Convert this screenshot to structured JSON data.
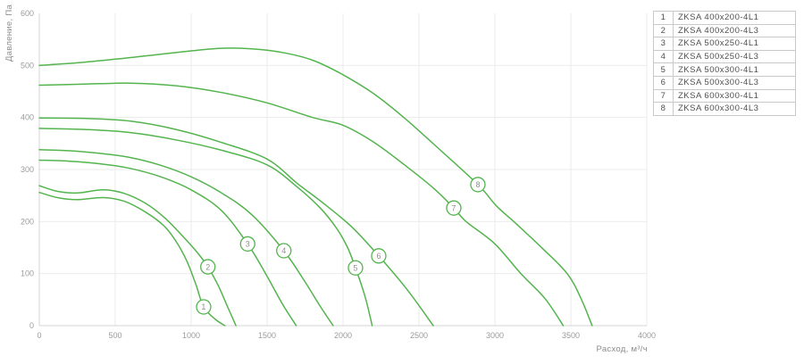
{
  "chart_data": {
    "type": "line",
    "title": "",
    "xlabel": "Расход, м³/ч",
    "ylabel": "Давление, Па",
    "xlim": [
      0,
      4000
    ],
    "ylim": [
      0,
      600
    ],
    "x_ticks": [
      0,
      500,
      1000,
      1500,
      2000,
      2500,
      3000,
      3500,
      4000
    ],
    "y_ticks": [
      0,
      100,
      200,
      300,
      400,
      500,
      600
    ],
    "grid": true,
    "legend_position": "top-right-outside",
    "style": {
      "curve_color": "#54b44e",
      "grid_color": "#ebebeb",
      "axis_color": "#d4d4d4",
      "tick_text_color": "#9b9b9b",
      "axis_title_color": "#8d8d8d",
      "marker_fill": "#ffffff",
      "marker_number_color": "#909090",
      "legend_border_color": "#c9c9c9",
      "legend_text_color": "#4f4f4f"
    },
    "series": [
      {
        "num": "1",
        "name": "ZKSA 400x200-4L1",
        "marker_at": {
          "flow": 1082,
          "pressure": 36
        },
        "points": [
          [
            0,
            256
          ],
          [
            120,
            246
          ],
          [
            250,
            242
          ],
          [
            420,
            246
          ],
          [
            560,
            239
          ],
          [
            700,
            218
          ],
          [
            820,
            192
          ],
          [
            900,
            162
          ],
          [
            970,
            125
          ],
          [
            1030,
            80
          ],
          [
            1082,
            36
          ],
          [
            1160,
            12
          ],
          [
            1222,
            0
          ]
        ]
      },
      {
        "num": "2",
        "name": "ZKSA 400x200-4L3",
        "marker_at": {
          "flow": 1110,
          "pressure": 113
        },
        "points": [
          [
            0,
            269
          ],
          [
            120,
            258
          ],
          [
            250,
            255
          ],
          [
            420,
            261
          ],
          [
            560,
            254
          ],
          [
            700,
            235
          ],
          [
            830,
            206
          ],
          [
            950,
            170
          ],
          [
            1050,
            137
          ],
          [
            1110,
            113
          ],
          [
            1180,
            76
          ],
          [
            1240,
            36
          ],
          [
            1295,
            0
          ]
        ]
      },
      {
        "num": "3",
        "name": "ZKSA 500x250-4L1",
        "marker_at": {
          "flow": 1372,
          "pressure": 157
        },
        "points": [
          [
            0,
            318
          ],
          [
            200,
            316
          ],
          [
            400,
            311
          ],
          [
            600,
            302
          ],
          [
            800,
            286
          ],
          [
            1000,
            261
          ],
          [
            1200,
            221
          ],
          [
            1372,
            157
          ],
          [
            1490,
            100
          ],
          [
            1600,
            42
          ],
          [
            1692,
            0
          ]
        ]
      },
      {
        "num": "4",
        "name": "ZKSA 500x250-4L3",
        "marker_at": {
          "flow": 1610,
          "pressure": 144
        },
        "points": [
          [
            0,
            338
          ],
          [
            200,
            336
          ],
          [
            400,
            331
          ],
          [
            600,
            323
          ],
          [
            800,
            308
          ],
          [
            1000,
            286
          ],
          [
            1200,
            255
          ],
          [
            1400,
            213
          ],
          [
            1610,
            144
          ],
          [
            1750,
            84
          ],
          [
            1850,
            37
          ],
          [
            1935,
            0
          ]
        ]
      },
      {
        "num": "5",
        "name": "ZKSA 500x300-4L1",
        "marker_at": {
          "flow": 2082,
          "pressure": 111
        },
        "points": [
          [
            0,
            379
          ],
          [
            300,
            377
          ],
          [
            600,
            371
          ],
          [
            900,
            357
          ],
          [
            1200,
            337
          ],
          [
            1500,
            309
          ],
          [
            1700,
            266
          ],
          [
            1850,
            226
          ],
          [
            1960,
            186
          ],
          [
            2030,
            150
          ],
          [
            2082,
            111
          ],
          [
            2145,
            56
          ],
          [
            2192,
            0
          ]
        ]
      },
      {
        "num": "6",
        "name": "ZKSA 500x300-4L3",
        "marker_at": {
          "flow": 2235,
          "pressure": 134
        },
        "points": [
          [
            0,
            399
          ],
          [
            300,
            398
          ],
          [
            600,
            393
          ],
          [
            900,
            377
          ],
          [
            1200,
            352
          ],
          [
            1500,
            320
          ],
          [
            1700,
            273
          ],
          [
            1880,
            233
          ],
          [
            2060,
            189
          ],
          [
            2235,
            134
          ],
          [
            2420,
            70
          ],
          [
            2594,
            0
          ]
        ]
      },
      {
        "num": "7",
        "name": "ZKSA 600x300-4L1",
        "marker_at": {
          "flow": 2729,
          "pressure": 226
        },
        "points": [
          [
            0,
            462
          ],
          [
            300,
            464
          ],
          [
            600,
            466
          ],
          [
            900,
            461
          ],
          [
            1200,
            448
          ],
          [
            1500,
            428
          ],
          [
            1800,
            400
          ],
          [
            2000,
            385
          ],
          [
            2200,
            353
          ],
          [
            2400,
            310
          ],
          [
            2600,
            263
          ],
          [
            2729,
            226
          ],
          [
            2810,
            200
          ],
          [
            3000,
            157
          ],
          [
            3171,
            100
          ],
          [
            3330,
            52
          ],
          [
            3450,
            0
          ]
        ]
      },
      {
        "num": "8",
        "name": "ZKSA 600x300-4L3",
        "marker_at": {
          "flow": 2888,
          "pressure": 271
        },
        "points": [
          [
            0,
            500
          ],
          [
            250,
            505
          ],
          [
            500,
            512
          ],
          [
            750,
            520
          ],
          [
            1000,
            528
          ],
          [
            1200,
            533
          ],
          [
            1400,
            532
          ],
          [
            1600,
            525
          ],
          [
            1800,
            510
          ],
          [
            2000,
            482
          ],
          [
            2200,
            446
          ],
          [
            2400,
            400
          ],
          [
            2600,
            348
          ],
          [
            2888,
            271
          ],
          [
            3010,
            230
          ],
          [
            3124,
            200
          ],
          [
            3300,
            152
          ],
          [
            3476,
            100
          ],
          [
            3570,
            50
          ],
          [
            3640,
            0
          ]
        ]
      }
    ]
  }
}
